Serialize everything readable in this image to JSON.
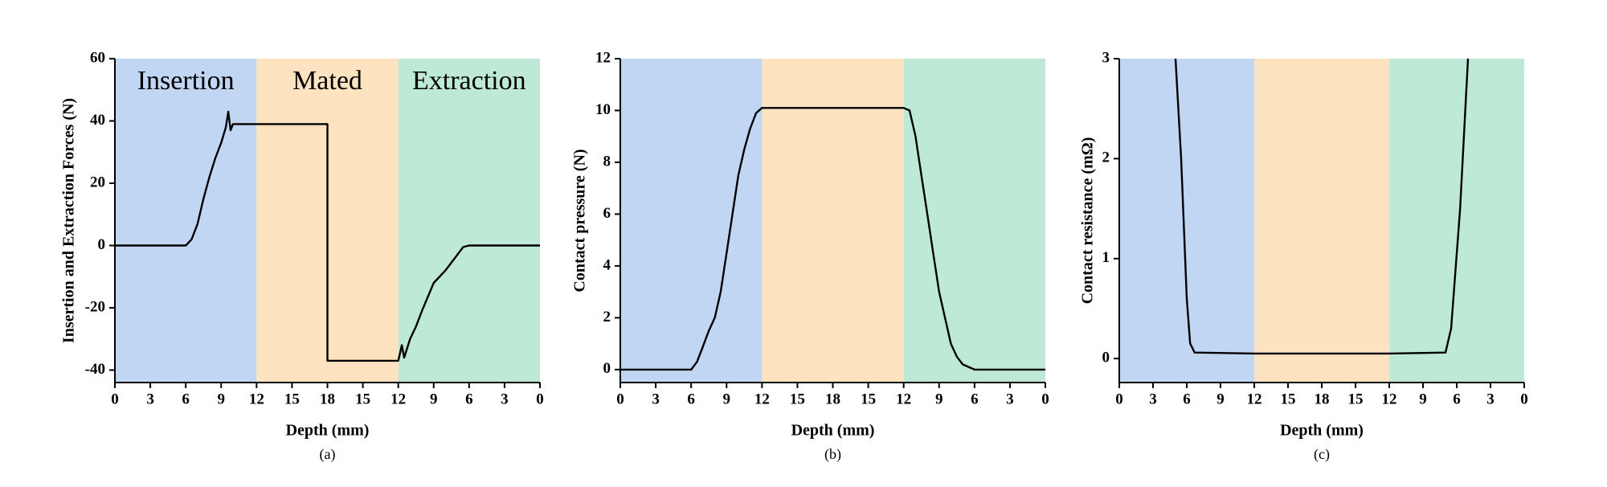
{
  "chart_data": [
    {
      "type": "line",
      "caption": "(a)",
      "xlabel": "Depth (mm)",
      "ylabel": "Insertion and Extraction Forces (N)",
      "regions": [
        {
          "label": "Insertion",
          "start": 0,
          "end": 12,
          "color": "#c0d6f2"
        },
        {
          "label": "Mated",
          "start": 12,
          "end": 24,
          "color": "#fde3bf"
        },
        {
          "label": "Extraction",
          "start": 24,
          "end": 36,
          "color": "#bde9d6"
        }
      ],
      "xlim": [
        0,
        36
      ],
      "xticks": [
        0,
        3,
        6,
        9,
        12,
        15,
        18,
        {
          "value": 21,
          "label": "15"
        },
        {
          "value": 24,
          "label": "12"
        },
        {
          "value": 27,
          "label": "9"
        },
        {
          "value": 30,
          "label": "6"
        },
        {
          "value": 33,
          "label": "3"
        },
        {
          "value": 36,
          "label": "0"
        }
      ],
      "ylim": [
        -44,
        60
      ],
      "yticks": [
        -40,
        -20,
        0,
        20,
        40,
        60
      ],
      "color": "#000000",
      "x": [
        0,
        6,
        6.5,
        7,
        7.5,
        8,
        8.5,
        9,
        9.4,
        9.6,
        9.8,
        10,
        12,
        18,
        18,
        24,
        24.3,
        24.5,
        25,
        25.5,
        26,
        27,
        28,
        29,
        29.5,
        30,
        36
      ],
      "values": [
        0,
        0,
        2,
        7,
        15,
        22,
        28,
        33,
        38,
        43,
        37,
        39,
        39,
        39,
        -37,
        -37,
        -32,
        -36,
        -30,
        -26,
        -21,
        -12,
        -8,
        -3,
        -0.5,
        0,
        0
      ]
    },
    {
      "type": "line",
      "caption": "(b)",
      "xlabel": "Depth (mm)",
      "ylabel": "Contact pressure (N)",
      "regions": [
        {
          "start": 0,
          "end": 12,
          "color": "#c0d6f2"
        },
        {
          "start": 12,
          "end": 24,
          "color": "#fde3bf"
        },
        {
          "start": 24,
          "end": 36,
          "color": "#bde9d6"
        }
      ],
      "xlim": [
        0,
        36
      ],
      "xticks": [
        0,
        3,
        6,
        9,
        12,
        15,
        18,
        {
          "value": 21,
          "label": "15"
        },
        {
          "value": 24,
          "label": "12"
        },
        {
          "value": 27,
          "label": "9"
        },
        {
          "value": 30,
          "label": "6"
        },
        {
          "value": 33,
          "label": "3"
        },
        {
          "value": 36,
          "label": "0"
        }
      ],
      "ylim": [
        -0.5,
        12
      ],
      "yticks": [
        0,
        2,
        4,
        6,
        8,
        10,
        12
      ],
      "color": "#000000",
      "x": [
        0,
        6,
        6.5,
        7,
        7.5,
        8,
        8.5,
        9,
        9.5,
        10,
        10.5,
        11,
        11.5,
        12,
        24,
        24.5,
        25,
        25.5,
        26,
        26.5,
        27,
        27.5,
        28,
        28.5,
        29,
        30,
        36
      ],
      "values": [
        0,
        0,
        0.3,
        0.9,
        1.5,
        2,
        3,
        4.5,
        6,
        7.5,
        8.5,
        9.3,
        9.9,
        10.1,
        10.1,
        10,
        9,
        7.5,
        6,
        4.5,
        3,
        2,
        1,
        0.5,
        0.2,
        0,
        0
      ]
    },
    {
      "type": "line",
      "caption": "(c)",
      "xlabel": "Depth (mm)",
      "ylabel": "Contact resistance (mΩ)",
      "regions": [
        {
          "start": 0,
          "end": 12,
          "color": "#c0d6f2"
        },
        {
          "start": 12,
          "end": 24,
          "color": "#fde3bf"
        },
        {
          "start": 24,
          "end": 36,
          "color": "#bde9d6"
        }
      ],
      "xlim": [
        0,
        36
      ],
      "xticks": [
        0,
        3,
        6,
        9,
        12,
        15,
        18,
        {
          "value": 21,
          "label": "15"
        },
        {
          "value": 24,
          "label": "12"
        },
        {
          "value": 27,
          "label": "9"
        },
        {
          "value": 30,
          "label": "6"
        },
        {
          "value": 33,
          "label": "3"
        },
        {
          "value": 36,
          "label": "0"
        }
      ],
      "ylim": [
        -0.24,
        3
      ],
      "yticks": [
        0,
        1,
        2,
        3
      ],
      "color": "#000000",
      "x": [
        5,
        5.5,
        6,
        6.3,
        6.7,
        12,
        24,
        29,
        29.5,
        30.3,
        31
      ],
      "values": [
        3,
        2,
        0.6,
        0.15,
        0.06,
        0.05,
        0.05,
        0.06,
        0.3,
        1.5,
        3
      ]
    }
  ]
}
